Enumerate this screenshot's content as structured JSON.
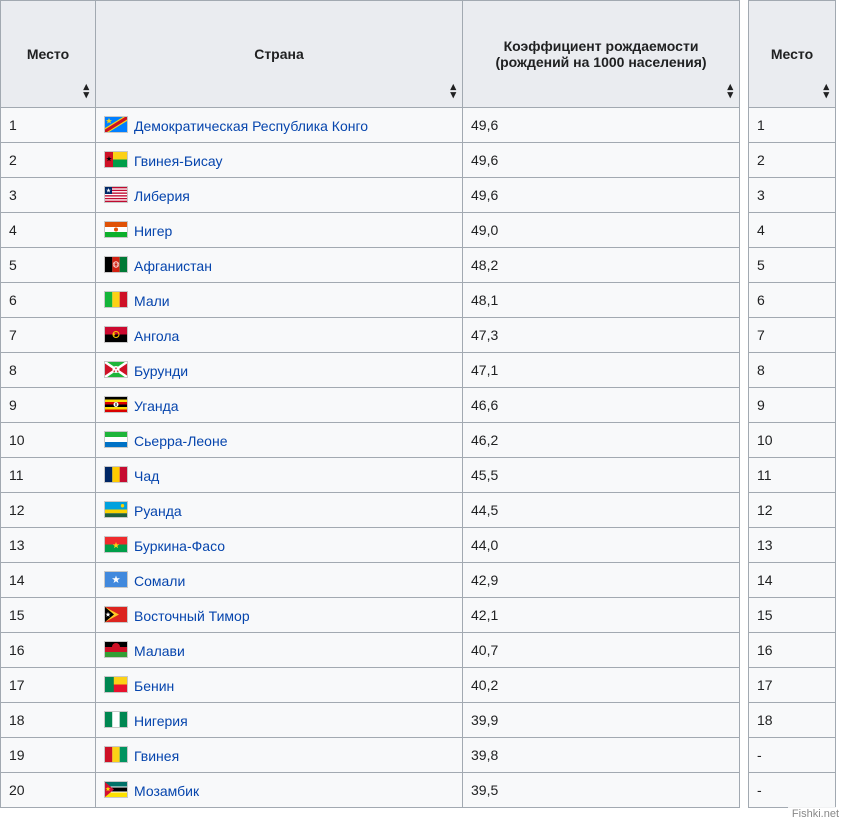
{
  "columns": {
    "rank": "Место",
    "country": "Страна",
    "rate": "Коэффициент рождаемости (рождений на 1000 населения)",
    "rank2": "Место"
  },
  "link_color": "#0645ad",
  "border_color": "#a2a9b1",
  "header_bg": "#eaecf0",
  "cell_bg": "#f8f9fa",
  "rows": [
    {
      "rank": "1",
      "country": "Демократическая Республика Конго",
      "rate": "49,6",
      "flag": "drc"
    },
    {
      "rank": "2",
      "country": "Гвинея-Бисау",
      "rate": "49,6",
      "flag": "gnb"
    },
    {
      "rank": "3",
      "country": "Либерия",
      "rate": "49,6",
      "flag": "lbr"
    },
    {
      "rank": "4",
      "country": "Нигер",
      "rate": "49,0",
      "flag": "ner"
    },
    {
      "rank": "5",
      "country": "Афганистан",
      "rate": "48,2",
      "flag": "afg"
    },
    {
      "rank": "6",
      "country": "Мали",
      "rate": "48,1",
      "flag": "mli"
    },
    {
      "rank": "7",
      "country": "Ангола",
      "rate": "47,3",
      "flag": "ago"
    },
    {
      "rank": "8",
      "country": "Бурунди",
      "rate": "47,1",
      "flag": "bdi"
    },
    {
      "rank": "9",
      "country": "Уганда",
      "rate": "46,6",
      "flag": "uga"
    },
    {
      "rank": "10",
      "country": "Сьерра-Леоне",
      "rate": "46,2",
      "flag": "sle"
    },
    {
      "rank": "11",
      "country": "Чад",
      "rate": "45,5",
      "flag": "tcd"
    },
    {
      "rank": "12",
      "country": "Руанда",
      "rate": "44,5",
      "flag": "rwa"
    },
    {
      "rank": "13",
      "country": "Буркина-Фасо",
      "rate": "44,0",
      "flag": "bfa"
    },
    {
      "rank": "14",
      "country": "Сомали",
      "rate": "42,9",
      "flag": "som"
    },
    {
      "rank": "15",
      "country": "Восточный Тимор",
      "rate": "42,1",
      "flag": "tls"
    },
    {
      "rank": "16",
      "country": "Малави",
      "rate": "40,7",
      "flag": "mwi"
    },
    {
      "rank": "17",
      "country": "Бенин",
      "rate": "40,2",
      "flag": "ben"
    },
    {
      "rank": "18",
      "country": "Нигерия",
      "rate": "39,9",
      "flag": "nga"
    },
    {
      "rank": "19",
      "country": "Гвинея",
      "rate": "39,8",
      "flag": "gin"
    },
    {
      "rank": "20",
      "country": "Мозамбик",
      "rate": "39,5",
      "flag": "moz"
    }
  ],
  "side_rows": [
    "1",
    "2",
    "3",
    "4",
    "5",
    "6",
    "7",
    "8",
    "9",
    "10",
    "11",
    "12",
    "13",
    "14",
    "15",
    "16",
    "17",
    "18",
    "-",
    "-"
  ],
  "watermark": "Fishki.net",
  "flags_svg": {
    "drc": "<svg xmlns='http://www.w3.org/2000/svg' viewBox='0 0 22 15'><rect width='22' height='15' fill='#007fff'/><polygon points='0,15 0,11 18,0 22,0 22,4 4,15' fill='#f7d618'/><polygon points='0,15 0,12.5 20,0 22,0 22,2.5 2,15' fill='#ce1021'/><polygon points='4,1 4.9,3.1 7.1,3.1 5.3,4.4 6,6.5 4,5.2 2,6.5 2.7,4.4 0.9,3.1 3.1,3.1' fill='#f7d618'/></svg>",
    "gnb": "<svg xmlns='http://www.w3.org/2000/svg' viewBox='0 0 22 15'><rect width='22' height='7.5' fill='#fcd116'/><rect y='7.5' width='22' height='7.5' fill='#009e49'/><rect width='8' height='15' fill='#ce1126'/><polygon points='4,4 4.7,6 6.8,6 5.1,7.2 5.7,9.2 4,8 2.3,9.2 2.9,7.2 1.2,6 3.3,6' fill='#000'/></svg>",
    "lbr": "<svg xmlns='http://www.w3.org/2000/svg' viewBox='0 0 22 15'><rect width='22' height='15' fill='#bf0a30'/><rect y='1.36' width='22' height='1.36' fill='#fff'/><rect y='4.09' width='22' height='1.36' fill='#fff'/><rect y='6.82' width='22' height='1.36' fill='#fff'/><rect y='9.55' width='22' height='1.36' fill='#fff'/><rect y='12.27' width='22' height='1.36' fill='#fff'/><rect width='7' height='7' fill='#002868'/><polygon points='3.5,1 4.1,2.7 5.9,2.7 4.4,3.8 5,5.5 3.5,4.4 2,5.5 2.6,3.8 1.1,2.7 2.9,2.7' fill='#fff'/></svg>",
    "ner": "<svg xmlns='http://www.w3.org/2000/svg' viewBox='0 0 22 15'><rect width='22' height='5' fill='#e05206'/><rect y='5' width='22' height='5' fill='#fff'/><rect y='10' width='22' height='5' fill='#0db02b'/><circle cx='11' cy='7.5' r='2' fill='#e05206'/></svg>",
    "afg": "<svg xmlns='http://www.w3.org/2000/svg' viewBox='0 0 22 15'><rect width='7.33' height='15' fill='#000'/><rect x='7.33' width='7.34' height='15' fill='#d32011'/><rect x='14.67' width='7.33' height='15' fill='#007a36'/><circle cx='11' cy='7.5' r='2.8' fill='none' stroke='#fff' stroke-width='0.6'/><rect x='9.5' y='6' width='3' height='3' fill='none' stroke='#fff' stroke-width='0.5'/></svg>",
    "mli": "<svg xmlns='http://www.w3.org/2000/svg' viewBox='0 0 22 15'><rect width='7.33' height='15' fill='#14b53a'/><rect x='7.33' width='7.34' height='15' fill='#fcd116'/><rect x='14.67' width='7.33' height='15' fill='#ce1126'/></svg>",
    "ago": "<svg xmlns='http://www.w3.org/2000/svg' viewBox='0 0 22 15'><rect width='22' height='7.5' fill='#cc092f'/><rect y='7.5' width='22' height='7.5' fill='#000'/><circle cx='11' cy='7.5' r='3' fill='none' stroke='#ffcb00' stroke-width='1'/><polygon points='9,5.5 9.5,6.8 10.8,6.8 9.7,7.6 10.1,8.9 9,8.1 7.9,8.9 8.3,7.6 7.2,6.8 8.5,6.8' fill='#ffcb00'/></svg>",
    "bdi": "<svg xmlns='http://www.w3.org/2000/svg' viewBox='0 0 22 15'><rect width='22' height='15' fill='#1eb53a'/><polygon points='0,0 22,15 22,0 0,15' fill='#ce1126'/><polygon points='0,0 22,15' fill='none'/><line x1='0' y1='0' x2='22' y2='15' stroke='#fff' stroke-width='2.5'/><line x1='22' y1='0' x2='0' y2='15' stroke='#fff' stroke-width='2.5'/><circle cx='11' cy='7.5' r='3.5' fill='#fff'/><polygon points='11,5 11.4,5.9 12.3,5.9 11.5,6.5 11.9,7.4 11,6.8 10.1,7.4 10.5,6.5 9.7,5.9 10.6,5.9' fill='#ce1126'/><polygon points='9.3,8 9.7,8.9 10.6,8.9 9.8,9.5 10.2,10.4 9.3,9.8 8.4,10.4 8.8,9.5 8,8.9 8.9,8.9' fill='#ce1126'/><polygon points='12.7,8 13.1,8.9 14,8.9 13.2,9.5 13.6,10.4 12.7,9.8 11.8,10.4 12.2,9.5 11.4,8.9 12.3,8.9' fill='#ce1126'/></svg>",
    "uga": "<svg xmlns='http://www.w3.org/2000/svg' viewBox='0 0 22 15'><rect width='22' height='2.5' fill='#000'/><rect y='2.5' width='22' height='2.5' fill='#fcdc04'/><rect y='5' width='22' height='2.5' fill='#d90000'/><rect y='7.5' width='22' height='2.5' fill='#000'/><rect y='10' width='22' height='2.5' fill='#fcdc04'/><rect y='12.5' width='22' height='2.5' fill='#d90000'/><circle cx='11' cy='7.5' r='2.5' fill='#fff'/><path d='M10.5 6 L11 5.5 L11.5 6 L11.5 9 L10.5 9 Z' fill='#000'/></svg>",
    "sle": "<svg xmlns='http://www.w3.org/2000/svg' viewBox='0 0 22 15'><rect width='22' height='5' fill='#1eb53a'/><rect y='5' width='22' height='5' fill='#fff'/><rect y='10' width='22' height='5' fill='#0072c6'/></svg>",
    "tcd": "<svg xmlns='http://www.w3.org/2000/svg' viewBox='0 0 22 15'><rect width='7.33' height='15' fill='#002664'/><rect x='7.33' width='7.34' height='15' fill='#fecb00'/><rect x='14.67' width='7.33' height='15' fill='#c60c30'/></svg>",
    "rwa": "<svg xmlns='http://www.w3.org/2000/svg' viewBox='0 0 22 15'><rect width='22' height='7.5' fill='#00a1de'/><rect y='7.5' width='22' height='3.75' fill='#fad201'/><rect y='11.25' width='22' height='3.75' fill='#20603d'/><circle cx='17.5' cy='3.75' r='1.7' fill='#fad201'/></svg>",
    "bfa": "<svg xmlns='http://www.w3.org/2000/svg' viewBox='0 0 22 15'><rect width='22' height='7.5' fill='#ef2b2d'/><rect y='7.5' width='22' height='7.5' fill='#009e49'/><polygon points='11,5 11.9,7.4 14.4,7.4 12.3,8.9 13.1,11.3 11,9.8 8.9,11.3 9.7,8.9 7.6,7.4 10.1,7.4' fill='#fcd116'/></svg>",
    "som": "<svg xmlns='http://www.w3.org/2000/svg' viewBox='0 0 22 15'><rect width='22' height='15' fill='#4189dd'/><polygon points='11,3.5 12,6.3 15,6.3 12.6,8.1 13.5,11 11,9.2 8.5,11 9.4,8.1 7,6.3 10,6.3' fill='#fff'/></svg>",
    "tls": "<svg xmlns='http://www.w3.org/2000/svg' viewBox='0 0 22 15'><rect width='22' height='15' fill='#dc241f'/><polygon points='0,0 14,7.5 0,15' fill='#ffc726'/><polygon points='0,0 9,7.5 0,15' fill='#000'/><polygon points='3,5 3.7,6.8 5.6,6.8 4,7.9 4.6,9.7 3,8.6 1.4,9.7 2,7.9 0.4,6.8 2.3,6.8' fill='#fff'/></svg>",
    "mwi": "<svg xmlns='http://www.w3.org/2000/svg' viewBox='0 0 22 15'><rect width='22' height='5' fill='#000'/><rect y='5' width='22' height='5' fill='#ce1126'/><rect y='10' width='22' height='5' fill='#339e35'/><path d='M 7 5 A 4 4 0 0 1 15 5' fill='#ce1126'/></svg>",
    "ben": "<svg xmlns='http://www.w3.org/2000/svg' viewBox='0 0 22 15'><rect width='22' height='7.5' fill='#fcd116'/><rect y='7.5' width='22' height='7.5' fill='#e8112d'/><rect width='8.8' height='15' fill='#008751'/></svg>",
    "nga": "<svg xmlns='http://www.w3.org/2000/svg' viewBox='0 0 22 15'><rect width='7.33' height='15' fill='#008751'/><rect x='7.33' width='7.34' height='15' fill='#fff'/><rect x='14.67' width='7.33' height='15' fill='#008751'/></svg>",
    "gin": "<svg xmlns='http://www.w3.org/2000/svg' viewBox='0 0 22 15'><rect width='7.33' height='15' fill='#ce1126'/><rect x='7.33' width='7.34' height='15' fill='#fcd116'/><rect x='14.67' width='7.33' height='15' fill='#009460'/></svg>",
    "moz": "<svg xmlns='http://www.w3.org/2000/svg' viewBox='0 0 22 15'><rect width='22' height='4.5' fill='#007168'/><rect y='4.5' width='22' height='1' fill='#fff'/><rect y='5.5' width='22' height='4' fill='#000'/><rect y='9.5' width='22' height='1' fill='#fff'/><rect y='10.5' width='22' height='4.5' fill='#fce100'/><polygon points='0,0 9,7.5 0,15' fill='#d21034'/><polygon points='3,4.5 3.7,6.3 5.6,6.3 4,7.4 4.6,9.2 3,8.1 1.4,9.2 2,7.4 0.4,6.3 2.3,6.3' fill='#fce100'/></svg>"
  }
}
